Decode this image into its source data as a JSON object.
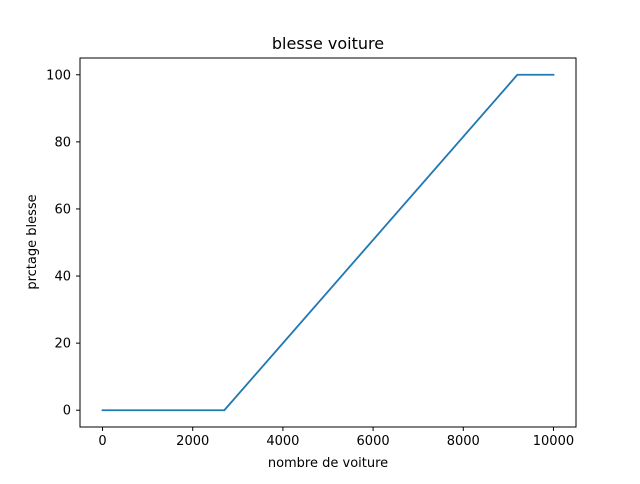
{
  "chart_data": {
    "type": "line",
    "title": "blesse voiture",
    "xlabel": "nombre de voiture",
    "ylabel": "prctage blesse",
    "xlim": [
      -500,
      10500
    ],
    "ylim": [
      -5,
      105
    ],
    "xticks": [
      0,
      2000,
      4000,
      6000,
      8000,
      10000
    ],
    "yticks": [
      0,
      20,
      40,
      60,
      80,
      100
    ],
    "grid": false,
    "series": [
      {
        "color": "#1f77b4",
        "x": [
          0,
          2700,
          9200,
          10000
        ],
        "y": [
          0,
          0,
          100,
          100
        ]
      }
    ]
  }
}
